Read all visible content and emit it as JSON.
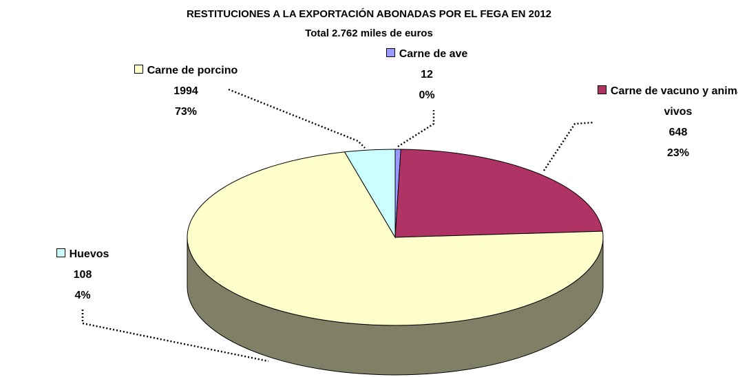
{
  "chart_data": {
    "type": "pie3d",
    "title": "RESTITUCIONES A LA EXPORTACIÓN ABONADAS POR EL FEGA EN 2012",
    "subtitle": "Total 2.762 miles de euros",
    "categories": [
      "Carne de ave",
      "Carne de vacuno y animales vivos",
      "Carne de porcino",
      "Huevos"
    ],
    "values": [
      12,
      648,
      1994,
      108
    ],
    "percent_labels": [
      "0%",
      "23%",
      "73%",
      "4%"
    ],
    "colors": [
      "#9999ff",
      "#b03366",
      "#ffffcc",
      "#ccffff"
    ]
  }
}
